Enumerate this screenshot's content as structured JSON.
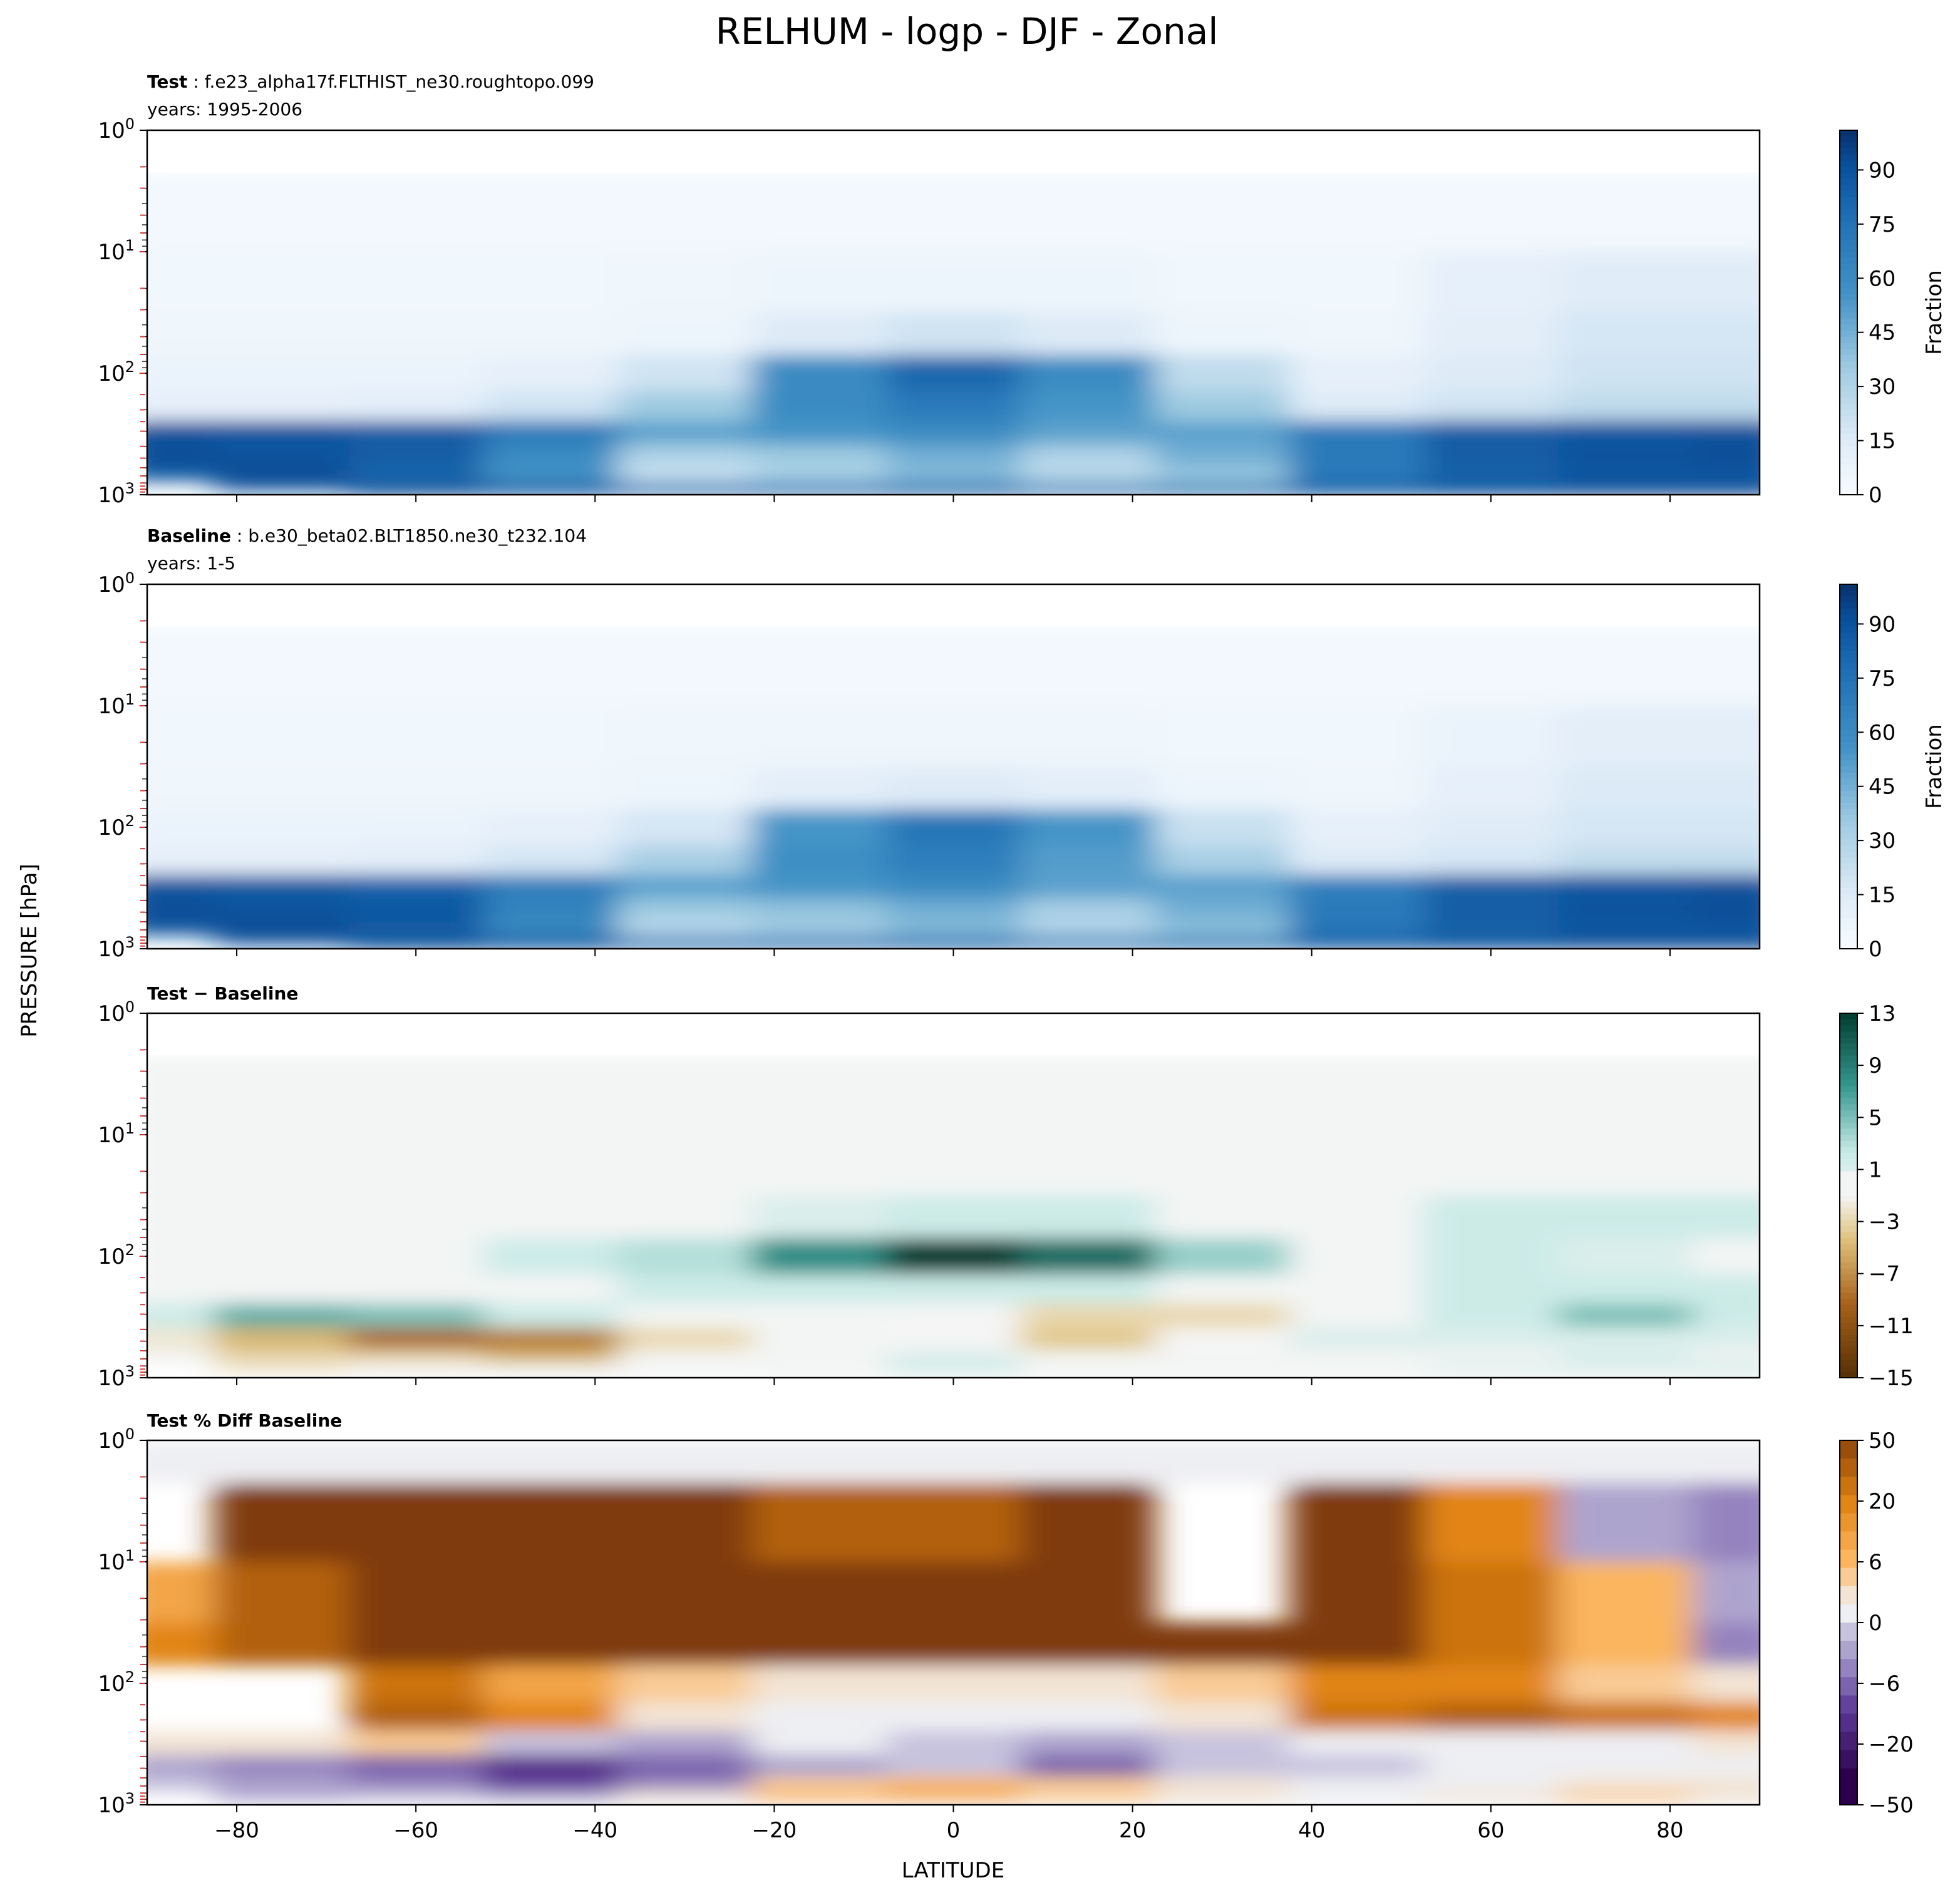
{
  "figure": {
    "title": "RELHUM - logp - DJF - Zonal",
    "ylabel": "PRESSURE [hPa]",
    "xlabel": "LATITUDE"
  },
  "panels": [
    {
      "bold": "Test",
      "sep": " : ",
      "case": "f.e23_alpha17f.FLTHIST_ne30.roughtopo.099",
      "years": "years: 1995-2006"
    },
    {
      "bold": "Baseline",
      "sep": " : ",
      "case": "b.e30_beta02.BLT1850.ne30_t232.104",
      "years": "years: 1-5"
    },
    {
      "bold": "Test − Baseline",
      "sep": "",
      "case": "",
      "years": ""
    },
    {
      "bold": "Test % Diff Baseline",
      "sep": "",
      "case": "",
      "years": ""
    }
  ],
  "colorbars": [
    {
      "label": "Fraction",
      "ticks": [
        "0",
        "15",
        "30",
        "45",
        "60",
        "75",
        "90"
      ],
      "values": [
        0,
        15,
        30,
        45,
        60,
        75,
        90
      ],
      "min": 0,
      "max": 101,
      "cmap": "blues"
    },
    {
      "label": "Fraction",
      "ticks": [
        "0",
        "15",
        "30",
        "45",
        "60",
        "75",
        "90"
      ],
      "values": [
        0,
        15,
        30,
        45,
        60,
        75,
        90
      ],
      "min": 0,
      "max": 101,
      "cmap": "blues"
    },
    {
      "label": "",
      "ticks": [
        "−15",
        "−11",
        "−7",
        "−3",
        "1",
        "5",
        "9",
        "13"
      ],
      "levels": [
        -15,
        -13,
        -11,
        -9,
        -7,
        -5,
        -3,
        -1,
        1,
        3,
        5,
        7,
        9,
        11,
        13
      ],
      "cmap": "brbg"
    },
    {
      "label": "",
      "ticks": [
        "−50",
        "−20",
        "−6",
        "0",
        "6",
        "20",
        "50"
      ],
      "levels": [
        -70,
        -50,
        -40,
        -30,
        -20,
        -15,
        -10,
        -6,
        -4,
        -2,
        0,
        2,
        4,
        6,
        10,
        15,
        20,
        30,
        40,
        50,
        70
      ],
      "cmap": "puor"
    }
  ],
  "chart_data": {
    "type": "heatmap",
    "title": "RELHUM - logp - DJF - Zonal",
    "xlabel": "LATITUDE",
    "ylabel": "PRESSURE [hPa]",
    "x_ticks": [
      -80,
      -60,
      -40,
      -20,
      0,
      20,
      40,
      60,
      80
    ],
    "xlim": [
      -90,
      90
    ],
    "y_scale": "log",
    "y_inverted": true,
    "ylim": [
      1000,
      1
    ],
    "y_ticks": [
      1,
      10,
      100,
      1000
    ],
    "lat": [
      -90,
      -75,
      -60,
      -45,
      -30,
      -15,
      0,
      15,
      30,
      45,
      60,
      75,
      90
    ],
    "levels_hPa": [
      1,
      5,
      20,
      50,
      100,
      200,
      300,
      500,
      700,
      850,
      1000
    ],
    "fields": [
      {
        "name": "Test",
        "units": "Fraction",
        "values": [
          [
            null,
            null,
            null,
            null,
            null,
            null,
            null,
            null,
            null,
            null,
            null,
            null,
            null
          ],
          [
            3,
            3,
            3,
            3,
            3,
            3,
            3,
            3,
            3,
            3,
            3,
            3,
            3
          ],
          [
            4,
            4,
            4,
            4,
            5,
            6,
            6,
            6,
            4,
            4,
            10,
            14,
            14
          ],
          [
            5,
            5,
            5,
            5,
            6,
            15,
            20,
            15,
            6,
            5,
            12,
            18,
            18
          ],
          [
            8,
            8,
            8,
            10,
            20,
            60,
            80,
            60,
            25,
            10,
            15,
            20,
            20
          ],
          [
            10,
            10,
            12,
            20,
            35,
            60,
            70,
            55,
            35,
            15,
            20,
            25,
            25
          ],
          [
            90,
            88,
            85,
            70,
            50,
            55,
            60,
            50,
            50,
            70,
            85,
            88,
            90
          ],
          [
            92,
            90,
            85,
            60,
            30,
            35,
            45,
            30,
            45,
            70,
            85,
            90,
            92
          ],
          [
            85,
            92,
            80,
            55,
            20,
            30,
            40,
            25,
            35,
            70,
            82,
            88,
            88
          ],
          [
            null,
            90,
            88,
            80,
            55,
            55,
            65,
            50,
            55,
            80,
            88,
            90,
            90
          ],
          [
            null,
            null,
            95,
            92,
            90,
            92,
            92,
            90,
            90,
            92,
            92,
            95,
            95
          ]
        ]
      },
      {
        "name": "Baseline",
        "units": "Fraction",
        "values": [
          [
            null,
            null,
            null,
            null,
            null,
            null,
            null,
            null,
            null,
            null,
            null,
            null,
            null
          ],
          [
            3,
            3,
            3,
            3,
            3,
            3,
            3,
            3,
            3,
            3,
            3,
            3,
            3
          ],
          [
            4,
            4,
            4,
            4,
            5,
            5,
            5,
            5,
            4,
            4,
            8,
            12,
            12
          ],
          [
            5,
            5,
            5,
            5,
            6,
            12,
            15,
            12,
            6,
            5,
            10,
            16,
            16
          ],
          [
            8,
            8,
            8,
            10,
            18,
            55,
            72,
            55,
            22,
            10,
            14,
            18,
            18
          ],
          [
            10,
            10,
            12,
            18,
            32,
            58,
            68,
            52,
            32,
            15,
            18,
            24,
            24
          ],
          [
            88,
            86,
            82,
            68,
            50,
            55,
            60,
            50,
            50,
            68,
            84,
            88,
            90
          ],
          [
            92,
            90,
            88,
            65,
            35,
            38,
            45,
            32,
            45,
            70,
            85,
            90,
            92
          ],
          [
            88,
            92,
            85,
            60,
            25,
            32,
            40,
            28,
            38,
            72,
            82,
            88,
            88
          ],
          [
            null,
            90,
            88,
            82,
            58,
            56,
            65,
            52,
            56,
            80,
            88,
            90,
            90
          ],
          [
            null,
            null,
            95,
            92,
            90,
            92,
            92,
            90,
            90,
            92,
            92,
            95,
            95
          ]
        ]
      },
      {
        "name": "Test − Baseline",
        "units": "",
        "values": [
          [
            null,
            null,
            null,
            null,
            null,
            null,
            null,
            null,
            null,
            null,
            null,
            null,
            null
          ],
          [
            0,
            0,
            0,
            0,
            0,
            0,
            0,
            0,
            0,
            0,
            0,
            0,
            0
          ],
          [
            0,
            0,
            0,
            0,
            0,
            0,
            0,
            0,
            0,
            0,
            0,
            0,
            0
          ],
          [
            0,
            0,
            0,
            0,
            0,
            1,
            2,
            2,
            0,
            0,
            2,
            2,
            2
          ],
          [
            0,
            0,
            0,
            2,
            3,
            8,
            13,
            10,
            4,
            0,
            2,
            1,
            0
          ],
          [
            0,
            0,
            0,
            0,
            2,
            2,
            2,
            2,
            0,
            0,
            2,
            2,
            2
          ],
          [
            2,
            6,
            5,
            2,
            0,
            0,
            -1,
            -3,
            -3,
            0,
            2,
            5,
            2
          ],
          [
            -2,
            -5,
            -9,
            -8,
            -3,
            0,
            -1,
            -4,
            -1,
            1,
            1,
            1,
            1
          ],
          [
            0,
            -3,
            -3,
            -5,
            -1,
            0,
            1,
            0,
            0,
            0,
            0,
            1,
            0
          ],
          [
            null,
            -2,
            -1,
            0,
            0,
            0,
            2,
            0,
            0,
            0,
            1,
            1,
            2
          ],
          [
            null,
            null,
            0,
            0,
            0,
            0,
            0,
            0,
            0,
            0,
            0,
            0,
            0
          ]
        ]
      },
      {
        "name": "Test % Diff Baseline",
        "units": "",
        "values": [
          [
            0,
            0,
            0,
            0,
            0,
            0,
            0,
            0,
            0,
            0,
            0,
            0,
            0
          ],
          [
            null,
            70,
            60,
            70,
            70,
            40,
            40,
            60,
            null,
            60,
            20,
            -5,
            -6
          ],
          [
            10,
            40,
            70,
            70,
            70,
            60,
            60,
            60,
            null,
            70,
            30,
            6,
            -4
          ],
          [
            20,
            40,
            70,
            70,
            70,
            70,
            70,
            70,
            70,
            70,
            30,
            6,
            -6
          ],
          [
            null,
            null,
            30,
            10,
            4,
            2,
            2,
            2,
            4,
            20,
            20,
            4,
            2
          ],
          [
            null,
            null,
            40,
            20,
            2,
            0,
            0,
            0,
            2,
            30,
            40,
            30,
            20
          ],
          [
            2,
            2,
            4,
            -2,
            -4,
            -1,
            -2,
            -4,
            -2,
            0,
            0,
            0,
            2
          ],
          [
            -4,
            -6,
            -10,
            -20,
            -10,
            -4,
            -2,
            -10,
            -2,
            -2,
            0,
            0,
            0
          ],
          [
            -2,
            -4,
            -6,
            -15,
            -6,
            4,
            6,
            4,
            2,
            0,
            0,
            2,
            2
          ],
          [
            null,
            -4,
            -2,
            -4,
            2,
            6,
            10,
            4,
            2,
            0,
            2,
            4,
            2
          ],
          [
            null,
            null,
            0,
            0,
            0,
            2,
            2,
            2,
            0,
            0,
            0,
            2,
            0
          ]
        ]
      }
    ],
    "grid": false
  }
}
